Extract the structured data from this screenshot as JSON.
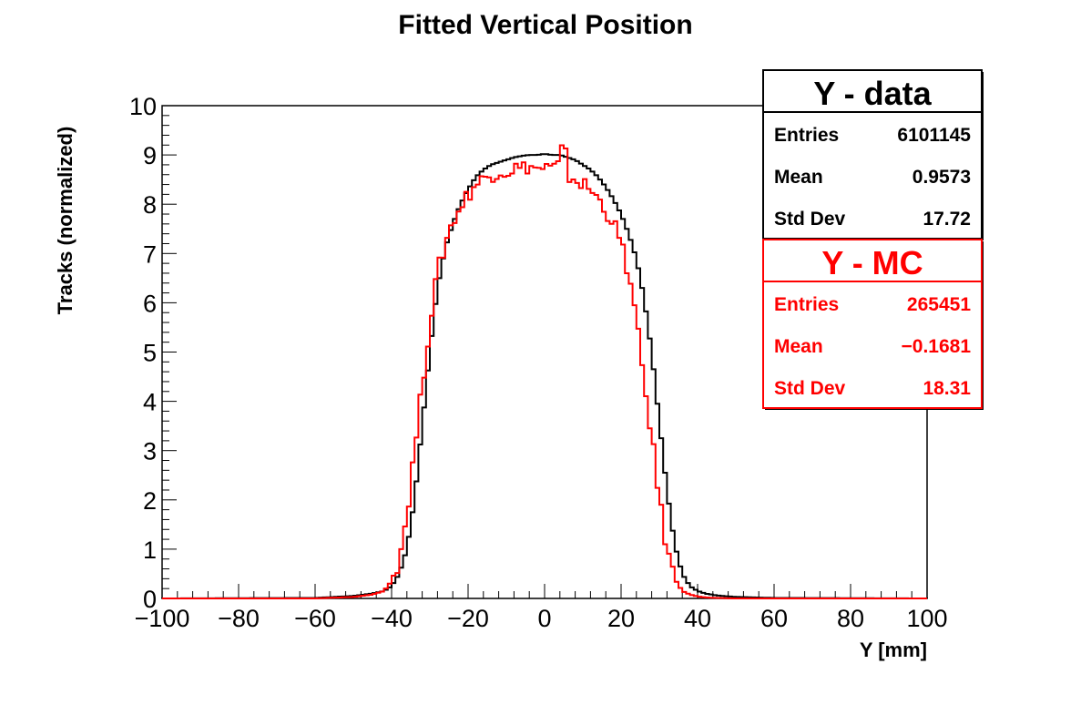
{
  "chart_data": {
    "type": "histogram",
    "title": "Fitted Vertical Position",
    "xlabel": "Y [mm]",
    "ylabel": "Tracks (normalized)",
    "xlim": [
      -100,
      100
    ],
    "ylim": [
      0,
      10
    ],
    "xticks": [
      "−100",
      "−80",
      "−60",
      "−40",
      "−20",
      "0",
      "20",
      "40",
      "60",
      "80",
      "100"
    ],
    "yticks": [
      "0",
      "1",
      "2",
      "3",
      "4",
      "5",
      "6",
      "7",
      "8",
      "9",
      "10"
    ],
    "grid": false,
    "series": [
      {
        "name": "Y - data",
        "color": "#000000",
        "x": [
          -100,
          -60,
          -50,
          -45,
          -42,
          -40,
          -38,
          -36,
          -34,
          -32,
          -30,
          -28,
          -26,
          -24,
          -22,
          -20,
          -18,
          -16,
          -14,
          -12,
          -10,
          -8,
          -6,
          -4,
          -2,
          0,
          2,
          4,
          6,
          8,
          10,
          12,
          14,
          16,
          18,
          20,
          22,
          24,
          26,
          28,
          30,
          32,
          34,
          36,
          38,
          40,
          42,
          45,
          50,
          55,
          60,
          100
        ],
        "y": [
          0,
          0.01,
          0.05,
          0.1,
          0.15,
          0.25,
          0.5,
          1.0,
          2.0,
          3.5,
          5.0,
          6.3,
          7.1,
          7.6,
          8.0,
          8.3,
          8.55,
          8.7,
          8.8,
          8.85,
          8.9,
          8.95,
          8.98,
          9.0,
          9.0,
          9.02,
          9.0,
          9.0,
          8.95,
          8.9,
          8.8,
          8.7,
          8.55,
          8.35,
          8.1,
          7.8,
          7.4,
          6.9,
          6.1,
          5.0,
          3.6,
          2.2,
          1.1,
          0.5,
          0.25,
          0.15,
          0.1,
          0.06,
          0.03,
          0.02,
          0.01,
          0
        ]
      },
      {
        "name": "Y - MC",
        "color": "#ff0000",
        "x": [
          -100,
          -60,
          -50,
          -45,
          -42,
          -40,
          -38,
          -36,
          -34,
          -32,
          -30,
          -28,
          -26,
          -24,
          -22,
          -20,
          -18,
          -16,
          -14,
          -12,
          -10,
          -8,
          -6,
          -4,
          -2,
          0,
          2,
          4,
          5,
          6,
          8,
          10,
          12,
          14,
          16,
          18,
          20,
          22,
          24,
          26,
          28,
          30,
          32,
          34,
          36,
          38,
          40,
          42,
          45,
          50,
          55,
          60,
          100
        ],
        "y": [
          0,
          0,
          0.03,
          0.08,
          0.15,
          0.35,
          0.8,
          1.7,
          3.0,
          4.3,
          5.6,
          6.6,
          7.2,
          7.65,
          7.95,
          8.2,
          8.4,
          8.5,
          8.6,
          8.7,
          8.65,
          8.75,
          8.7,
          8.8,
          8.7,
          8.75,
          8.7,
          8.8,
          9.35,
          8.6,
          8.5,
          8.4,
          8.3,
          8.1,
          7.9,
          7.6,
          7.2,
          6.6,
          5.6,
          4.4,
          3.3,
          2.0,
          1.0,
          0.4,
          0.15,
          0.08,
          0.04,
          0.02,
          0.01,
          0,
          0,
          0,
          0
        ]
      }
    ],
    "legend_position": "top-right"
  },
  "stats": [
    {
      "title": "Y - data",
      "color": "#000000",
      "rows": [
        {
          "label": "Entries",
          "value": "6101145"
        },
        {
          "label": "Mean",
          "value": "0.9573"
        },
        {
          "label": "Std Dev",
          "value": "17.72"
        }
      ]
    },
    {
      "title": "Y - MC",
      "color": "#ff0000",
      "rows": [
        {
          "label": "Entries",
          "value": "265451"
        },
        {
          "label": "Mean",
          "value": "−0.1681"
        },
        {
          "label": "Std Dev",
          "value": "18.31"
        }
      ]
    }
  ]
}
